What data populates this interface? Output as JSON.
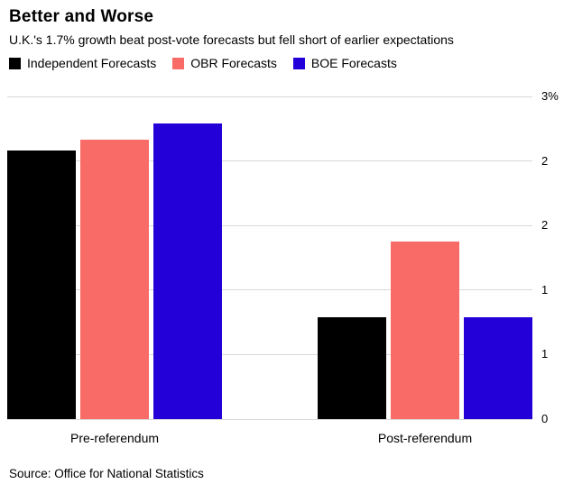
{
  "header": {
    "title": "Better and Worse",
    "subtitle": "U.K.'s 1.7% growth beat post-vote forecasts but fell short of earlier expectations"
  },
  "chart_data": {
    "type": "bar",
    "categories": [
      "Pre-referendum",
      "Post-referendum"
    ],
    "series": [
      {
        "name": "Independent Forecasts",
        "color": "#000000",
        "values": [
          2.5,
          0.95
        ]
      },
      {
        "name": "OBR Forecasts",
        "color": "#f96b66",
        "values": [
          2.6,
          1.65
        ]
      },
      {
        "name": "BOE Forecasts",
        "color": "#2400d8",
        "values": [
          2.75,
          0.95
        ]
      }
    ],
    "ylim": [
      0,
      3
    ],
    "ytick_labels_bottom_to_top": [
      "0",
      "1",
      "1",
      "2",
      "2",
      "3%"
    ],
    "grid": true,
    "legend_position": "top-left",
    "gridline_color": "#d9d9d9"
  },
  "footer": {
    "source": "Source: Office for National Statistics"
  }
}
